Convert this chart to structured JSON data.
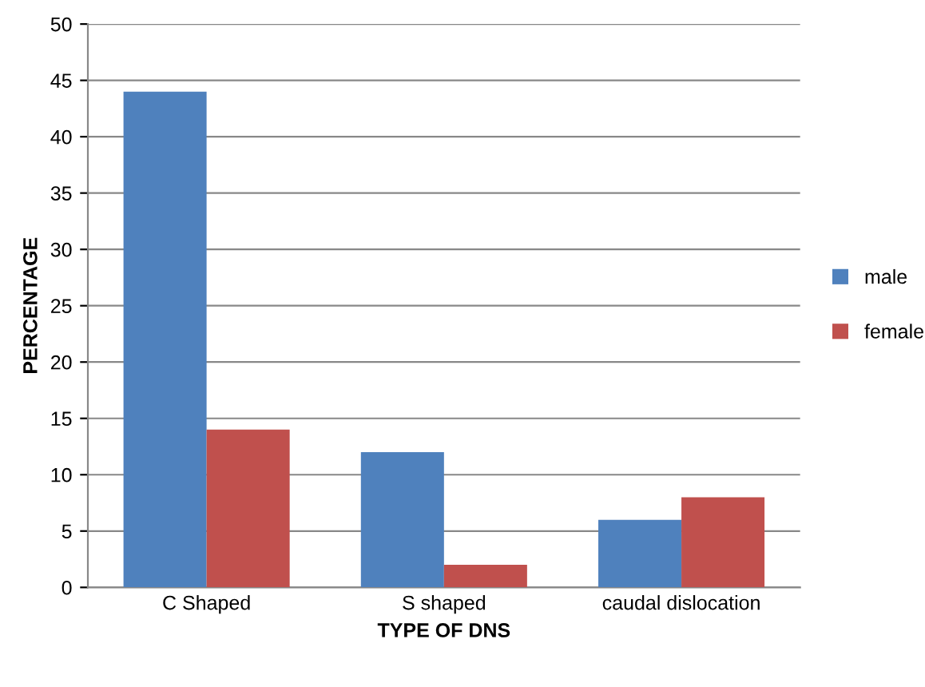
{
  "chart_data": {
    "type": "bar",
    "xlabel": "TYPE OF DNS",
    "ylabel": "PERCENTAGE",
    "categories": [
      "C Shaped",
      "S shaped",
      "caudal dislocation"
    ],
    "series": [
      {
        "name": "male",
        "color": "#4f81bd",
        "values": [
          44,
          12,
          6
        ]
      },
      {
        "name": "female",
        "color": "#c0504d",
        "values": [
          14,
          2,
          8
        ]
      }
    ],
    "ylim": [
      0,
      50
    ],
    "yticks": [
      0,
      5,
      10,
      15,
      20,
      25,
      30,
      35,
      40,
      45,
      50
    ],
    "grid": "y",
    "legend": "right"
  }
}
